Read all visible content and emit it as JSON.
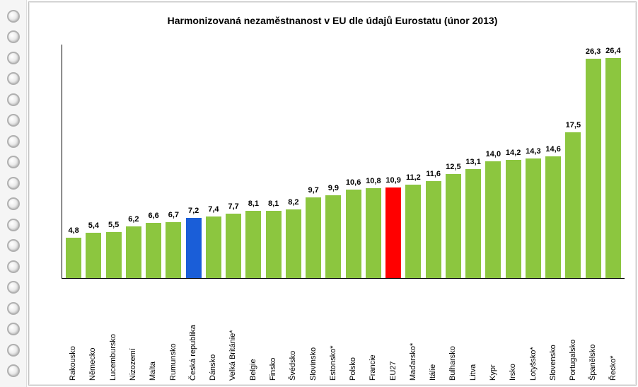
{
  "title": "Harmonizovaná nezaměstnanost v EU dle údajů Eurostatu (únor 2013)",
  "chart": {
    "type": "bar",
    "ymax": 28,
    "default_color": "#8cc63f",
    "highlight_colors": {
      "blue": "#1a5ed8",
      "red": "#ff0000"
    },
    "background_color": "#ffffff",
    "axis_color": "#000000",
    "value_fontsize": 11,
    "label_fontsize": 11,
    "title_fontsize": 14,
    "bars": [
      {
        "label": "Rakousko",
        "value": "4,8",
        "num": 4.8,
        "color": "#8cc63f"
      },
      {
        "label": "Německo",
        "value": "5,4",
        "num": 5.4,
        "color": "#8cc63f"
      },
      {
        "label": "Lucembursko",
        "value": "5,5",
        "num": 5.5,
        "color": "#8cc63f"
      },
      {
        "label": "Nizozemí",
        "value": "6,2",
        "num": 6.2,
        "color": "#8cc63f"
      },
      {
        "label": "Malta",
        "value": "6,6",
        "num": 6.6,
        "color": "#8cc63f"
      },
      {
        "label": "Rumunsko",
        "value": "6,7",
        "num": 6.7,
        "color": "#8cc63f"
      },
      {
        "label": "Česká republika",
        "value": "7,2",
        "num": 7.2,
        "color": "#1a5ed8"
      },
      {
        "label": "Dánsko",
        "value": "7,4",
        "num": 7.4,
        "color": "#8cc63f"
      },
      {
        "label": "Velká Británie*",
        "value": "7,7",
        "num": 7.7,
        "color": "#8cc63f"
      },
      {
        "label": "Belgie",
        "value": "8,1",
        "num": 8.1,
        "color": "#8cc63f"
      },
      {
        "label": "Finsko",
        "value": "8,1",
        "num": 8.1,
        "color": "#8cc63f"
      },
      {
        "label": "Švédsko",
        "value": "8,2",
        "num": 8.2,
        "color": "#8cc63f"
      },
      {
        "label": "Slovinsko",
        "value": "9,7",
        "num": 9.7,
        "color": "#8cc63f"
      },
      {
        "label": "Estonsko*",
        "value": "9,9",
        "num": 9.9,
        "color": "#8cc63f"
      },
      {
        "label": "Polsko",
        "value": "10,6",
        "num": 10.6,
        "color": "#8cc63f"
      },
      {
        "label": "Francie",
        "value": "10,8",
        "num": 10.8,
        "color": "#8cc63f"
      },
      {
        "label": "EU27",
        "value": "10,9",
        "num": 10.9,
        "color": "#ff0000"
      },
      {
        "label": "Maďarsko*",
        "value": "11,2",
        "num": 11.2,
        "color": "#8cc63f"
      },
      {
        "label": "Itálie",
        "value": "11,6",
        "num": 11.6,
        "color": "#8cc63f"
      },
      {
        "label": "Bulharsko",
        "value": "12,5",
        "num": 12.5,
        "color": "#8cc63f"
      },
      {
        "label": "Litva",
        "value": "13,1",
        "num": 13.1,
        "color": "#8cc63f"
      },
      {
        "label": "Kypr",
        "value": "14,0",
        "num": 14.0,
        "color": "#8cc63f"
      },
      {
        "label": "Irsko",
        "value": "14,2",
        "num": 14.2,
        "color": "#8cc63f"
      },
      {
        "label": "Lotyšsko*",
        "value": "14,3",
        "num": 14.3,
        "color": "#8cc63f"
      },
      {
        "label": "Slovensko",
        "value": "14,6",
        "num": 14.6,
        "color": "#8cc63f"
      },
      {
        "label": "Portugalsko",
        "value": "17,5",
        "num": 17.5,
        "color": "#8cc63f"
      },
      {
        "label": "Španělsko",
        "value": "26,3",
        "num": 26.3,
        "color": "#8cc63f"
      },
      {
        "label": "Řecko*",
        "value": "26,4",
        "num": 26.4,
        "color": "#8cc63f"
      }
    ]
  },
  "binder": {
    "ring_count": 18
  }
}
